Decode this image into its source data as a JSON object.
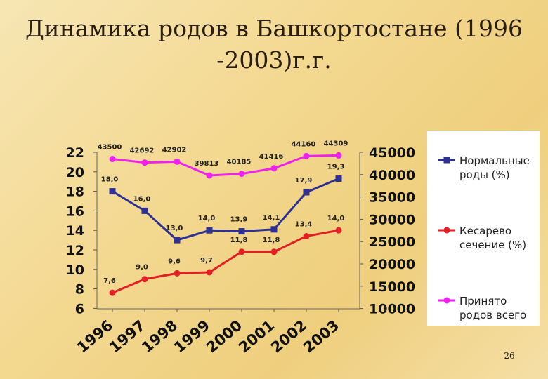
{
  "slide": {
    "title": "Динамика родов в Башкортостане (1996\n-2003)г.г.",
    "page_number": "26"
  },
  "chart_data": {
    "type": "line",
    "categories": [
      "1996",
      "1997",
      "1998",
      "1999",
      "2000",
      "2001",
      "2002",
      "2003"
    ],
    "y_left": {
      "ticks": [
        "22",
        "20",
        "18",
        "16",
        "14",
        "12",
        "10",
        "8",
        "6"
      ],
      "range": [
        6,
        22
      ]
    },
    "y_right": {
      "ticks": [
        "45000",
        "40000",
        "35000",
        "30000",
        "25000",
        "20000",
        "15000",
        "10000"
      ],
      "range": [
        10000,
        45000
      ]
    },
    "grid": false,
    "legend_position": "right",
    "series": [
      {
        "name": "Нормальные роды (%)",
        "axis": "left",
        "color": "#2e3192",
        "values": [
          18.0,
          16.0,
          13.0,
          14.0,
          13.9,
          14.1,
          17.9,
          19.3
        ],
        "labels": [
          "18,0",
          "16,0",
          "13,0",
          "14,0",
          "13,9",
          "14,1",
          "17,9",
          "19,3"
        ]
      },
      {
        "name": "Кесарево сечение (%)",
        "axis": "left",
        "color": "#e31e24",
        "values": [
          7.6,
          9.0,
          9.6,
          9.7,
          11.8,
          11.8,
          13.4,
          14.0
        ],
        "labels": [
          "7,6",
          "9,0",
          "9,6",
          "9,7",
          "11,8",
          "11,8",
          "13,4",
          "14,0"
        ]
      },
      {
        "name": "Принято родов всего",
        "axis": "right",
        "color": "#ee22ee",
        "values": [
          43500,
          42692,
          42902,
          39813,
          40185,
          41416,
          44160,
          44309
        ],
        "labels": [
          "43500",
          "42692",
          "42902",
          "39813",
          "40185",
          "41416",
          "44160",
          "44309"
        ]
      }
    ]
  }
}
